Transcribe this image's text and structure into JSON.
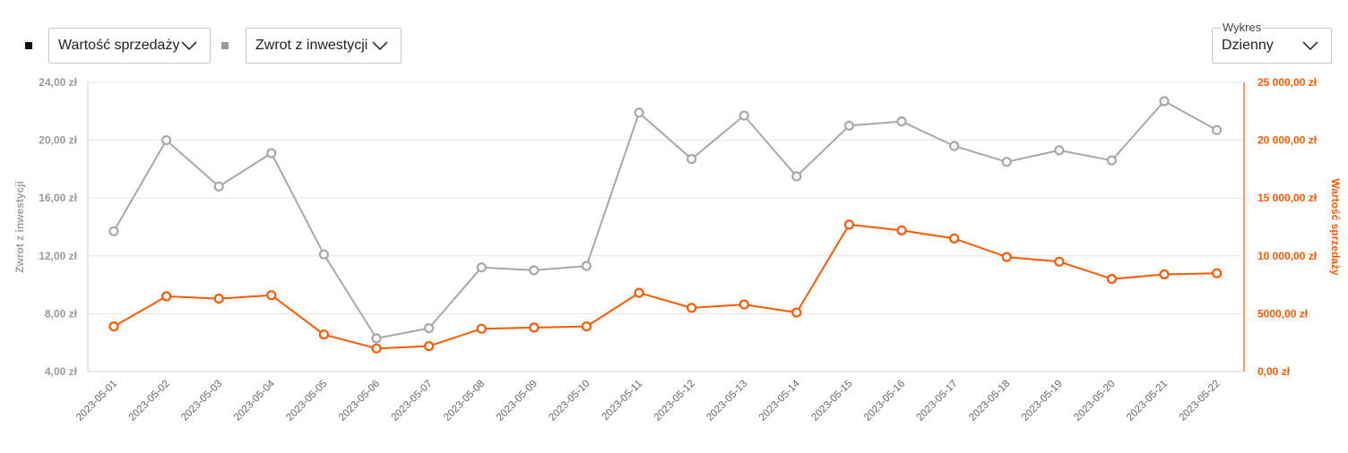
{
  "toolbar": {
    "series1_select": "Wartość sprzedaży",
    "series2_select": "Zwrot z inwestycji",
    "chart_type_label": "Wykres",
    "chart_type_value": "Dzienny"
  },
  "colors": {
    "roi": "#a8a8a8",
    "sales": "#ff5a00",
    "swatch1": "#111111",
    "swatch2": "#9a9a9a",
    "grid": "#e6e6e6"
  },
  "chart_data": {
    "type": "line",
    "x": [
      "2023-05-01",
      "2023-05-02",
      "2023-05-03",
      "2023-05-04",
      "2023-05-05",
      "2023-05-06",
      "2023-05-07",
      "2023-05-08",
      "2023-05-09",
      "2023-05-10",
      "2023-05-11",
      "2023-05-12",
      "2023-05-13",
      "2023-05-14",
      "2023-05-15",
      "2023-05-16",
      "2023-05-17",
      "2023-05-18",
      "2023-05-19",
      "2023-05-20",
      "2023-05-21",
      "2023-05-22"
    ],
    "left_axis": {
      "title": "Zwrot z inwestycji",
      "ylim": [
        4,
        24
      ],
      "ticks": [
        4,
        8,
        12,
        16,
        20,
        24
      ],
      "tick_labels": [
        "4,00 zł",
        "8,00 zł",
        "12,00 zł",
        "16,00 zł",
        "20,00 zł",
        "24,00 zł"
      ]
    },
    "right_axis": {
      "title": "Wartość sprzedaży",
      "ylim": [
        0,
        25000
      ],
      "ticks": [
        0,
        5000,
        10000,
        15000,
        20000,
        25000
      ],
      "tick_labels": [
        "0,00 zł",
        "5000,00 zł",
        "10 000,00 zł",
        "15 000,00 zł",
        "20 000,00 zł",
        "25 000,00 zł"
      ]
    },
    "series": [
      {
        "name": "Zwrot z inwestycji",
        "axis": "left",
        "color": "#a8a8a8",
        "values": [
          13.7,
          20.0,
          16.8,
          19.1,
          12.1,
          6.3,
          7.0,
          11.2,
          11.0,
          11.3,
          21.9,
          18.7,
          21.7,
          17.5,
          21.0,
          21.3,
          19.6,
          18.5,
          19.3,
          18.6,
          22.7,
          20.7
        ]
      },
      {
        "name": "Wartość sprzedaży",
        "axis": "right",
        "color": "#ff5a00",
        "values": [
          3900,
          6500,
          6300,
          6600,
          3200,
          2000,
          2200,
          3700,
          3800,
          3900,
          6800,
          5500,
          5800,
          5100,
          12700,
          12200,
          11500,
          9900,
          9500,
          8000,
          8400,
          8500
        ]
      }
    ],
    "grid": true
  }
}
